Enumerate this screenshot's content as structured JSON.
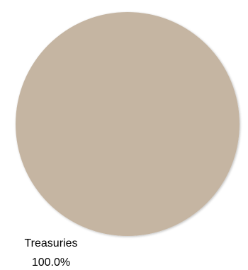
{
  "chart_data": {
    "type": "pie",
    "slices": [
      {
        "label": "Treasuries",
        "value": 100.0,
        "value_label": "100.0%",
        "color": "#c5b5a2"
      }
    ],
    "title": "",
    "legend": "none"
  }
}
